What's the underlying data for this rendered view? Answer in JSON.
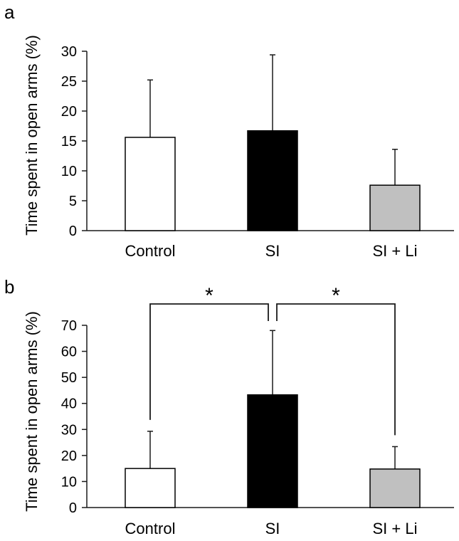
{
  "figure": {
    "colors": {
      "axis": "#1a1a1a",
      "bar_edge": "#000000",
      "error_bar": "#1a1a1a",
      "bracket": "#1a1a1a"
    },
    "bar_fills": [
      "#ffffff",
      "#000000",
      "#c0c0c0"
    ]
  },
  "chart_data": [
    {
      "panel_label": "a",
      "type": "bar",
      "categories": [
        "Control",
        "SI",
        "SI + Li"
      ],
      "values": [
        15.6,
        16.7,
        7.6
      ],
      "errors": [
        9.6,
        12.7,
        6.0
      ],
      "ylabel": "Time spent in open arms (%)",
      "xlabel": "",
      "ylim": [
        0,
        30
      ],
      "yticks": [
        0,
        5,
        10,
        15,
        20,
        25,
        30
      ],
      "significance": []
    },
    {
      "panel_label": "b",
      "type": "bar",
      "categories": [
        "Control",
        "SI",
        "SI + Li"
      ],
      "values": [
        15.0,
        43.3,
        14.8
      ],
      "errors": [
        14.3,
        24.7,
        8.6
      ],
      "ylabel": "Time spent in open arms (%)",
      "xlabel": "",
      "ylim": [
        0,
        70
      ],
      "yticks": [
        0,
        10,
        20,
        30,
        40,
        50,
        60,
        70
      ],
      "significance": [
        {
          "from": 0,
          "to": 1,
          "label": "*"
        },
        {
          "from": 1,
          "to": 2,
          "label": "*"
        }
      ]
    }
  ]
}
